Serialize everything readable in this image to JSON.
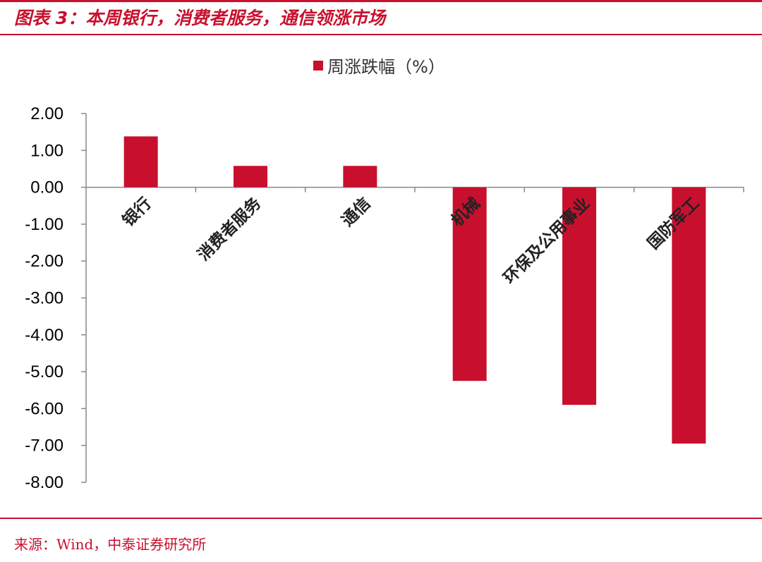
{
  "figure": {
    "title": "图表 3：本周银行，消费者服务，通信领涨市场",
    "source": "来源：Wind，中泰证券研究所"
  },
  "chart_data": {
    "type": "bar",
    "categories": [
      "银行",
      "消费者服务",
      "通信",
      "机械",
      "环保及公用事业",
      "国防军工"
    ],
    "series": [
      {
        "name": "周涨跌幅（%）",
        "values": [
          1.38,
          0.58,
          0.58,
          -5.25,
          -5.9,
          -6.95
        ],
        "color": "#c8102e"
      }
    ],
    "ylim": [
      -8,
      2
    ],
    "yticks": [
      2,
      1,
      0,
      -1,
      -2,
      -3,
      -4,
      -5,
      -6,
      -7,
      -8
    ],
    "ytick_labels": [
      "2.00",
      "1.00",
      "0.00",
      "-1.00",
      "-2.00",
      "-3.00",
      "-4.00",
      "-5.00",
      "-6.00",
      "-7.00",
      "-8.00"
    ],
    "legend_position": "top-center",
    "grid": false
  }
}
